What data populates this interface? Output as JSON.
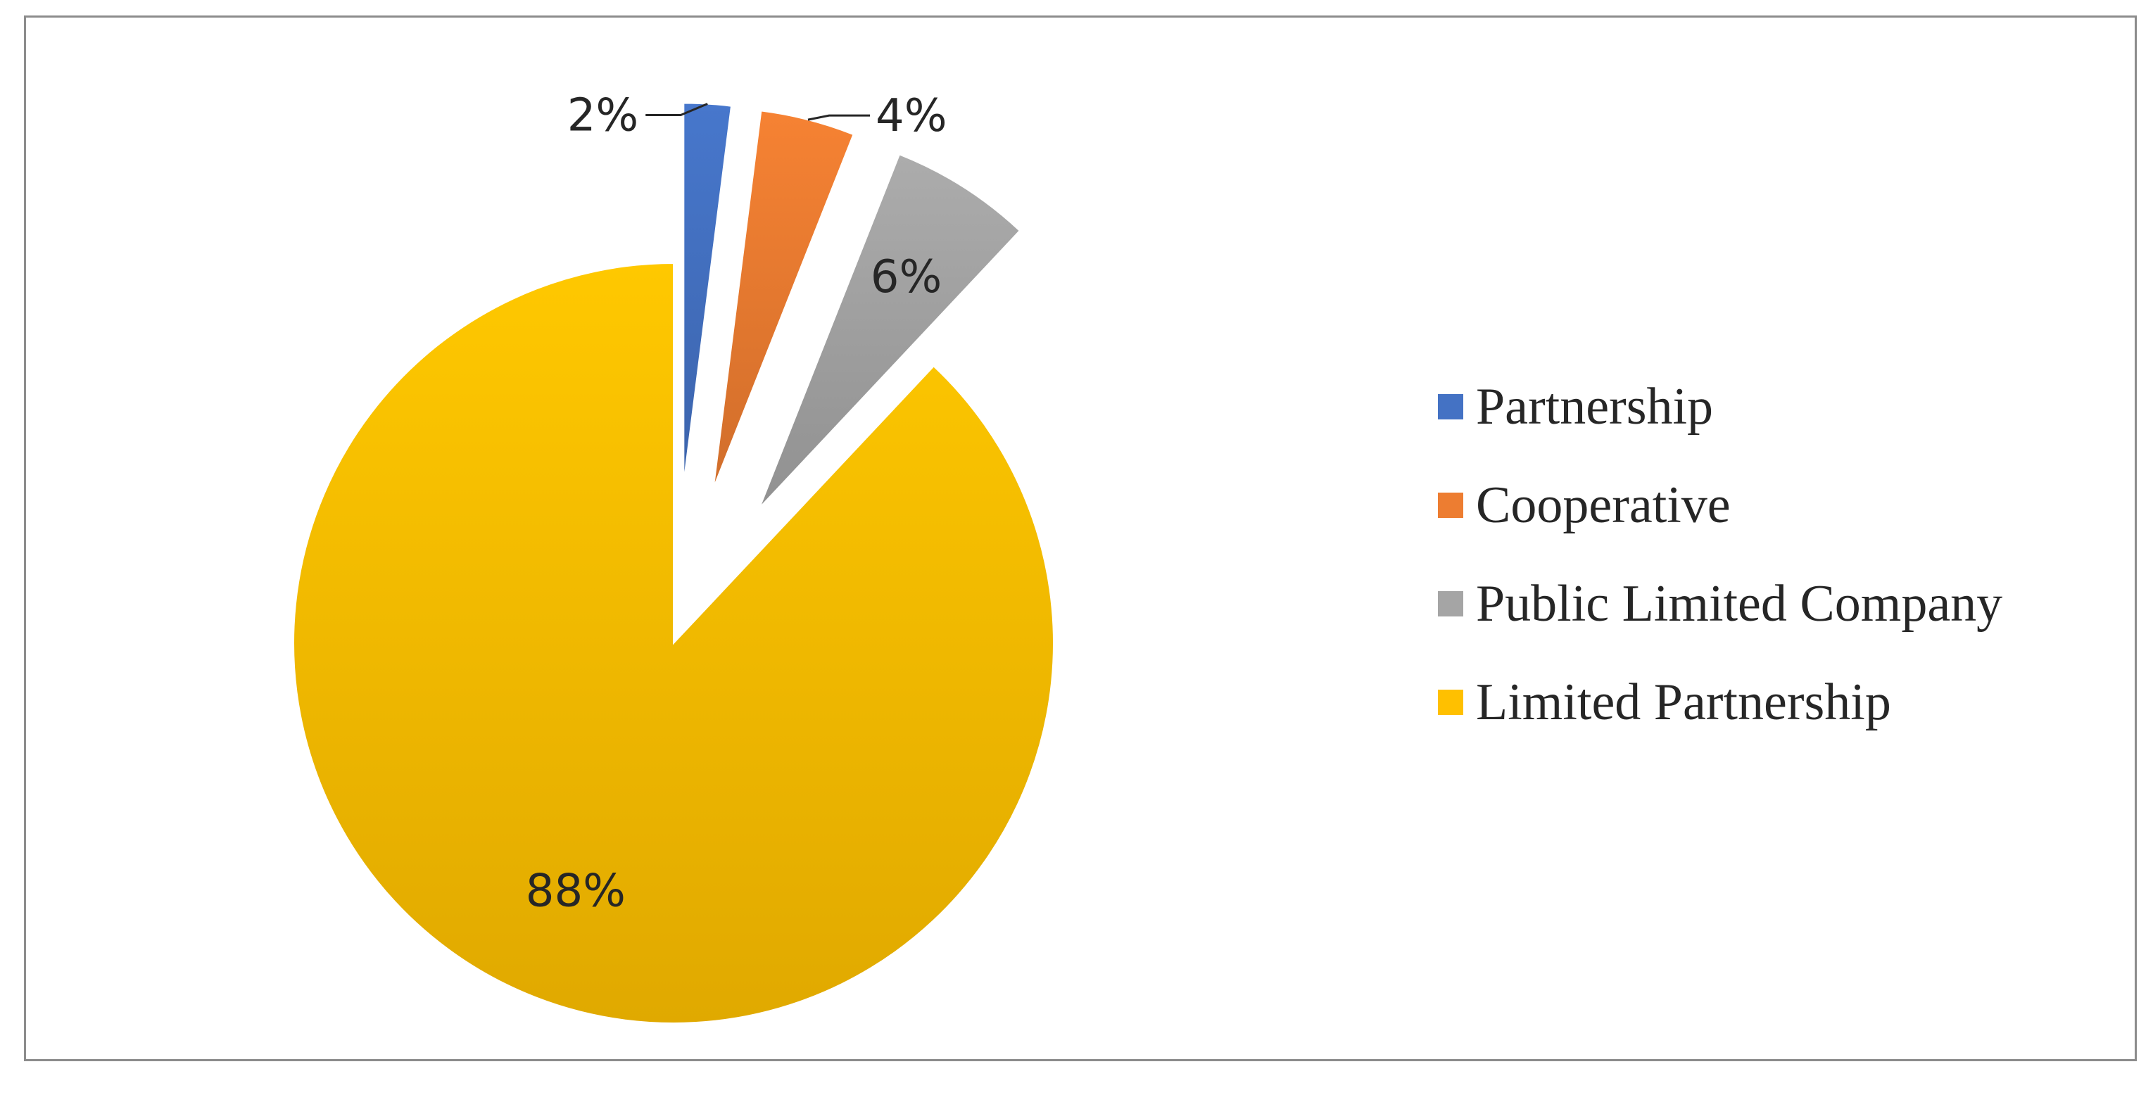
{
  "chart_data": {
    "type": "pie",
    "categories": [
      "Partnership",
      "Cooperative",
      "Public Limited Company",
      "Limited Partnership"
    ],
    "values": [
      2,
      4,
      6,
      88
    ],
    "value_labels": [
      "2%",
      "4%",
      "6%",
      "88%"
    ],
    "colors": [
      "#4472C4",
      "#ED7D31",
      "#A5A5A5",
      "#FFC000"
    ],
    "exploded": [
      true,
      true,
      true,
      false
    ],
    "legend_position": "right",
    "title": ""
  }
}
